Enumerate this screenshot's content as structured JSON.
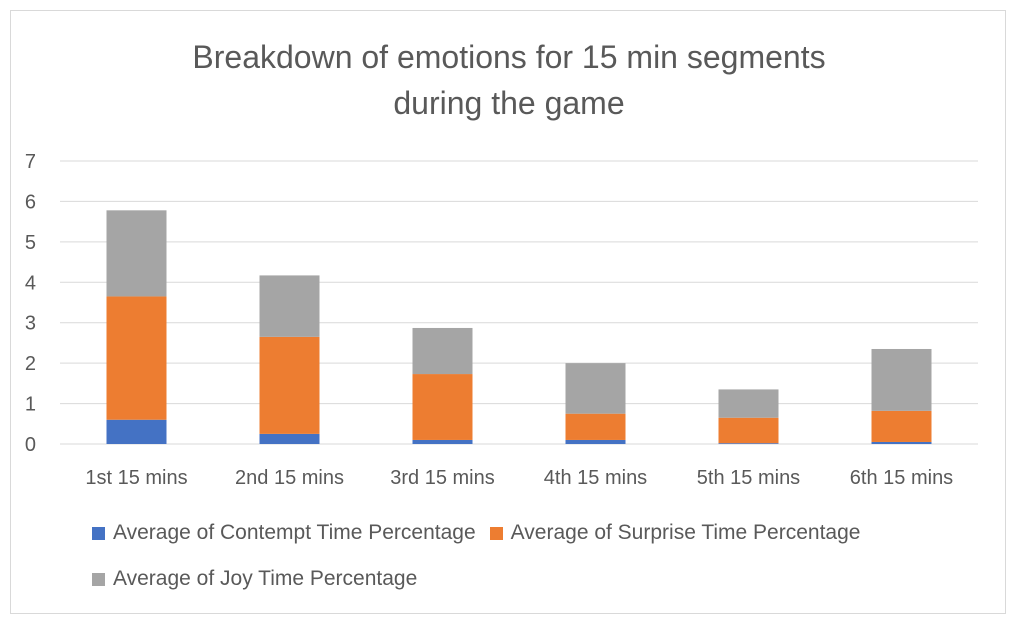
{
  "chart_data": {
    "type": "bar",
    "stacked": true,
    "title_lines": [
      "Breakdown of emotions for 15 min segments",
      "during the game"
    ],
    "categories": [
      "1st 15 mins",
      "2nd 15 mins",
      "3rd 15 mins",
      "4th 15 mins",
      "5th 15 mins",
      "6th 15 mins"
    ],
    "series": [
      {
        "name": "Average of Contempt Time Percentage",
        "color": "#4472c4",
        "values": [
          0.6,
          0.25,
          0.1,
          0.1,
          0.02,
          0.05
        ]
      },
      {
        "name": "Average of Surprise Time Percentage",
        "color": "#ed7d31",
        "values": [
          3.05,
          2.4,
          1.63,
          0.65,
          0.63,
          0.77
        ]
      },
      {
        "name": "Average of Joy Time Percentage",
        "color": "#a5a5a5",
        "values": [
          2.13,
          1.52,
          1.14,
          1.25,
          0.7,
          1.53
        ]
      }
    ],
    "ylim": [
      0,
      7
    ],
    "yticks": [
      0,
      1,
      2,
      3,
      4,
      5,
      6,
      7
    ],
    "grid": true,
    "legend_position": "bottom"
  }
}
